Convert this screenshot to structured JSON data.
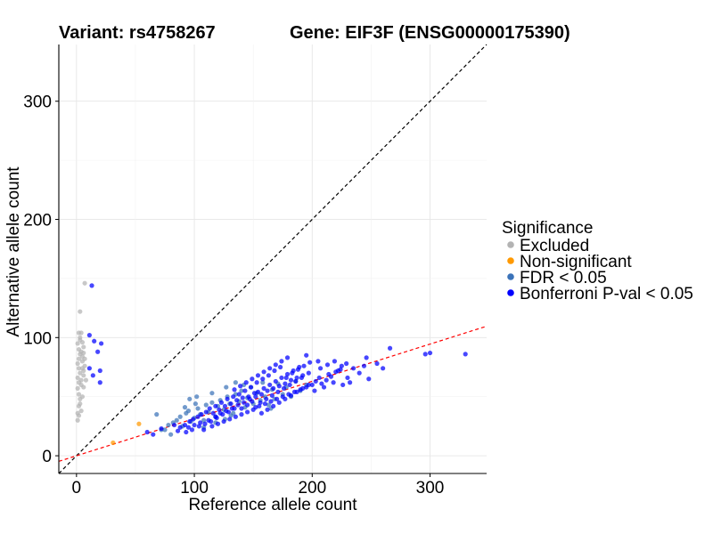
{
  "chart_data": {
    "type": "scatter",
    "title_left": "Variant: rs4758267",
    "title_right": "Gene: EIF3F (ENSG00000175390)",
    "xlabel": "Reference allele count",
    "ylabel": "Alternative allele count",
    "xlim": [
      -15,
      348
    ],
    "ylim": [
      -15,
      348
    ],
    "xticks": [
      0,
      100,
      200,
      300
    ],
    "yticks": [
      0,
      100,
      200,
      300
    ],
    "grid": true,
    "reference_lines": [
      {
        "name": "identity",
        "slope": 1,
        "intercept": 0,
        "color": "#000000",
        "dash": true
      },
      {
        "name": "fit",
        "slope": 0.315,
        "intercept": 0,
        "color": "#ff0000",
        "dash": true
      }
    ],
    "legend": {
      "title": "Significance",
      "position": "right",
      "entries": [
        {
          "label": "Excluded",
          "color": "#b3b3b3"
        },
        {
          "label": "Non-significant",
          "color": "#ff9900"
        },
        {
          "label": "FDR < 0.05",
          "color": "#3b73b9"
        },
        {
          "label": "Bonferroni P-val < 0.05",
          "color": "#0000ff"
        }
      ]
    },
    "series": [
      {
        "name": "Excluded",
        "color": "#b3b3b3",
        "points": [
          [
            1,
            30
          ],
          [
            1,
            36
          ],
          [
            2,
            42
          ],
          [
            3,
            48
          ],
          [
            2,
            52
          ],
          [
            1,
            57
          ],
          [
            2,
            62
          ],
          [
            1,
            66
          ],
          [
            3,
            70
          ],
          [
            2,
            74
          ],
          [
            1,
            78
          ],
          [
            2,
            82
          ],
          [
            3,
            86
          ],
          [
            2,
            90
          ],
          [
            1,
            95
          ],
          [
            3,
            100
          ],
          [
            2,
            104
          ],
          [
            4,
            104
          ],
          [
            5,
            96
          ],
          [
            4,
            88
          ],
          [
            5,
            80
          ],
          [
            6,
            72
          ],
          [
            4,
            64
          ],
          [
            6,
            58
          ],
          [
            5,
            50
          ],
          [
            3,
            44
          ],
          [
            4,
            38
          ],
          [
            2,
            34
          ],
          [
            6,
            92
          ],
          [
            5,
            84
          ],
          [
            7,
            76
          ],
          [
            6,
            68
          ],
          [
            4,
            60
          ],
          [
            7,
            82
          ],
          [
            8,
            64
          ],
          [
            6,
            87
          ],
          [
            3,
            122
          ],
          [
            7,
            146
          ],
          [
            5,
            74
          ],
          [
            3,
            98
          ]
        ]
      },
      {
        "name": "Non-significant",
        "color": "#ff9900",
        "points": [
          [
            53,
            27
          ],
          [
            31,
            11
          ]
        ]
      },
      {
        "name": "FDR < 0.05",
        "color": "#3b73b9",
        "points": [
          [
            75,
            22
          ],
          [
            78,
            26
          ],
          [
            82,
            28
          ],
          [
            85,
            30
          ],
          [
            88,
            33
          ],
          [
            90,
            25
          ],
          [
            93,
            36
          ],
          [
            95,
            38
          ],
          [
            97,
            29
          ],
          [
            100,
            32
          ],
          [
            103,
            40
          ],
          [
            105,
            35
          ],
          [
            108,
            30
          ],
          [
            110,
            43
          ],
          [
            112,
            37
          ],
          [
            115,
            45
          ],
          [
            118,
            33
          ],
          [
            120,
            42
          ],
          [
            122,
            47
          ],
          [
            125,
            39
          ],
          [
            128,
            50
          ],
          [
            130,
            44
          ],
          [
            133,
            36
          ],
          [
            135,
            52
          ],
          [
            138,
            46
          ],
          [
            140,
            55
          ],
          [
            143,
            41
          ],
          [
            145,
            49
          ],
          [
            148,
            58
          ],
          [
            150,
            44
          ],
          [
            153,
            53
          ],
          [
            156,
            47
          ],
          [
            158,
            62
          ],
          [
            160,
            50
          ],
          [
            163,
            43
          ],
          [
            166,
            56
          ],
          [
            168,
            48
          ],
          [
            171,
            61
          ],
          [
            175,
            52
          ],
          [
            178,
            58
          ],
          [
            182,
            50
          ],
          [
            186,
            63
          ],
          [
            190,
            55
          ],
          [
            195,
            60
          ],
          [
            80,
            18
          ],
          [
            72,
            22
          ],
          [
            68,
            35
          ],
          [
            96,
            48
          ],
          [
            102,
            50
          ],
          [
            115,
            53
          ],
          [
            127,
            58
          ],
          [
            135,
            62
          ],
          [
            142,
            60
          ],
          [
            108,
            24
          ],
          [
            118,
            28
          ],
          [
            126,
            31
          ],
          [
            131,
            34
          ],
          [
            92,
            41
          ],
          [
            101,
            44
          ],
          [
            165,
            40
          ]
        ]
      },
      {
        "name": "Bonferroni P-val < 0.05",
        "color": "#0000ff",
        "points": [
          [
            13,
            144
          ],
          [
            11,
            102
          ],
          [
            15,
            97
          ],
          [
            21,
            95
          ],
          [
            18,
            88
          ],
          [
            11,
            74
          ],
          [
            20,
            72
          ],
          [
            14,
            68
          ],
          [
            20,
            62
          ],
          [
            60,
            20
          ],
          [
            65,
            18
          ],
          [
            72,
            23
          ],
          [
            83,
            26
          ],
          [
            95,
            24
          ],
          [
            100,
            26
          ],
          [
            105,
            28
          ],
          [
            108,
            22
          ],
          [
            112,
            30
          ],
          [
            115,
            25
          ],
          [
            118,
            33
          ],
          [
            120,
            27
          ],
          [
            122,
            36
          ],
          [
            125,
            29
          ],
          [
            127,
            38
          ],
          [
            130,
            31
          ],
          [
            132,
            40
          ],
          [
            135,
            33
          ],
          [
            137,
            43
          ],
          [
            140,
            35
          ],
          [
            142,
            45
          ],
          [
            145,
            37
          ],
          [
            147,
            48
          ],
          [
            150,
            39
          ],
          [
            152,
            50
          ],
          [
            155,
            42
          ],
          [
            157,
            52
          ],
          [
            160,
            44
          ],
          [
            162,
            55
          ],
          [
            165,
            46
          ],
          [
            167,
            57
          ],
          [
            170,
            48
          ],
          [
            172,
            59
          ],
          [
            175,
            50
          ],
          [
            177,
            61
          ],
          [
            180,
            52
          ],
          [
            182,
            64
          ],
          [
            185,
            54
          ],
          [
            187,
            66
          ],
          [
            190,
            56
          ],
          [
            192,
            68
          ],
          [
            195,
            58
          ],
          [
            197,
            70
          ],
          [
            200,
            60
          ],
          [
            203,
            63
          ],
          [
            206,
            66
          ],
          [
            210,
            58
          ],
          [
            214,
            69
          ],
          [
            218,
            62
          ],
          [
            222,
            72
          ],
          [
            226,
            60
          ],
          [
            230,
            66
          ],
          [
            235,
            74
          ],
          [
            240,
            70
          ],
          [
            244,
            76
          ],
          [
            248,
            65
          ],
          [
            195,
            85
          ],
          [
            205,
            80
          ],
          [
            220,
            71
          ],
          [
            225,
            76
          ],
          [
            232,
            62
          ],
          [
            246,
            83
          ],
          [
            255,
            78
          ],
          [
            260,
            74
          ],
          [
            266,
            91
          ],
          [
            296,
            86
          ],
          [
            300,
            87
          ],
          [
            330,
            86
          ],
          [
            148,
            58
          ],
          [
            153,
            62
          ],
          [
            158,
            65
          ],
          [
            163,
            68
          ],
          [
            168,
            72
          ],
          [
            173,
            75
          ],
          [
            178,
            66
          ],
          [
            183,
            70
          ],
          [
            188,
            73
          ],
          [
            193,
            76
          ],
          [
            198,
            79
          ],
          [
            138,
            52
          ],
          [
            143,
            55
          ],
          [
            128,
            48
          ],
          [
            133,
            50
          ],
          [
            123,
            45
          ],
          [
            118,
            42
          ],
          [
            113,
            40
          ],
          [
            110,
            37
          ],
          [
            106,
            35
          ],
          [
            103,
            33
          ],
          [
            99,
            31
          ],
          [
            96,
            29
          ],
          [
            92,
            26
          ],
          [
            88,
            24
          ],
          [
            86,
            21
          ],
          [
            152,
            41
          ],
          [
            156,
            45
          ],
          [
            161,
            48
          ],
          [
            166,
            51
          ],
          [
            171,
            54
          ],
          [
            176,
            57
          ],
          [
            181,
            60
          ],
          [
            186,
            63
          ],
          [
            191,
            66
          ],
          [
            145,
            43
          ],
          [
            149,
            46
          ],
          [
            136,
            47
          ],
          [
            141,
            49
          ],
          [
            126,
            42
          ],
          [
            131,
            44
          ],
          [
            121,
            39
          ],
          [
            116,
            36
          ],
          [
            154,
            54
          ],
          [
            159,
            57
          ],
          [
            164,
            60
          ],
          [
            169,
            63
          ],
          [
            174,
            66
          ],
          [
            179,
            69
          ],
          [
            184,
            72
          ],
          [
            189,
            75
          ],
          [
            157,
            36
          ],
          [
            162,
            39
          ],
          [
            167,
            42
          ],
          [
            172,
            45
          ],
          [
            177,
            48
          ],
          [
            182,
            51
          ],
          [
            187,
            54
          ],
          [
            192,
            57
          ],
          [
            197,
            60
          ],
          [
            202,
            55
          ],
          [
            208,
            61
          ],
          [
            212,
            64
          ],
          [
            216,
            67
          ],
          [
            207,
            74
          ],
          [
            213,
            77
          ],
          [
            219,
            80
          ],
          [
            224,
            73
          ],
          [
            229,
            78
          ],
          [
            140,
            40
          ],
          [
            146,
            50
          ],
          [
            151,
            53
          ],
          [
            134,
            40
          ],
          [
            129,
            37
          ],
          [
            124,
            35
          ],
          [
            119,
            32
          ],
          [
            114,
            29
          ],
          [
            109,
            27
          ],
          [
            104,
            25
          ],
          [
            98,
            22
          ],
          [
            93,
            20
          ],
          [
            134,
            56
          ],
          [
            139,
            59
          ],
          [
            144,
            62
          ],
          [
            149,
            65
          ],
          [
            154,
            68
          ],
          [
            159,
            71
          ],
          [
            164,
            74
          ],
          [
            169,
            77
          ],
          [
            174,
            80
          ],
          [
            179,
            83
          ]
        ]
      }
    ]
  }
}
